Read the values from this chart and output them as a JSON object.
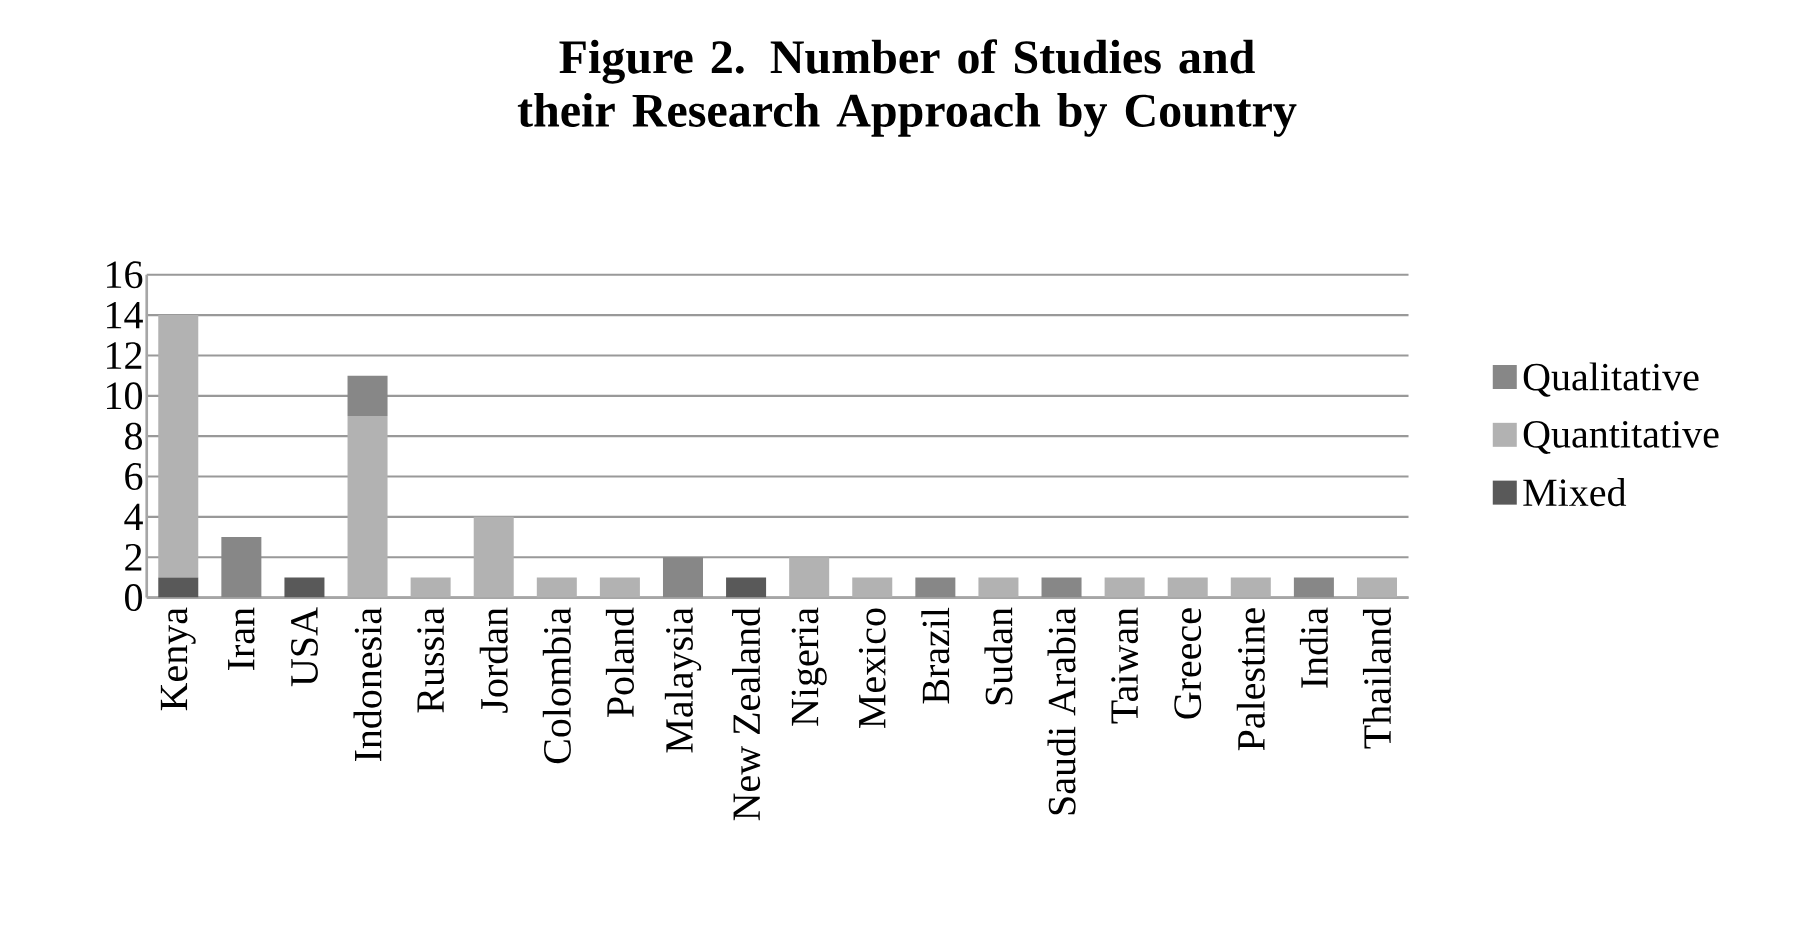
{
  "chart_data": {
    "type": "bar",
    "title": "Figure 2. Number of Studies and their Research Approach by Country",
    "stacked": true,
    "categories": [
      "Kenya",
      "Iran",
      "USA",
      "Indonesia",
      "Russia",
      "Jordan",
      "Colombia",
      "Poland",
      "Malaysia",
      "New Zealand",
      "Nigeria",
      "Mexico",
      "Brazil",
      "Sudan",
      "Saudi Arabia",
      "Taiwan",
      "Greece",
      "Palestine",
      "India",
      "Thailand"
    ],
    "series": [
      {
        "name": "Mixed",
        "color": "#595959",
        "values": [
          1,
          0,
          1,
          0,
          0,
          0,
          0,
          0,
          0,
          1,
          0,
          0,
          0,
          0,
          0,
          0,
          0,
          0,
          0,
          0
        ]
      },
      {
        "name": "Quantitative",
        "color": "#b2b2b2",
        "values": [
          13,
          0,
          0,
          9,
          1,
          4,
          1,
          1,
          0,
          0,
          2,
          1,
          0,
          1,
          0,
          1,
          1,
          1,
          0,
          1
        ]
      },
      {
        "name": "Qualitative",
        "color": "#878787",
        "values": [
          0,
          3,
          0,
          2,
          0,
          0,
          0,
          0,
          2,
          0,
          0,
          0,
          1,
          0,
          1,
          0,
          0,
          0,
          1,
          0
        ]
      }
    ],
    "ylim": [
      0,
      16
    ],
    "yticks": [
      0,
      2,
      4,
      6,
      8,
      10,
      12,
      14,
      16
    ],
    "grid": "y",
    "legend": "right"
  }
}
